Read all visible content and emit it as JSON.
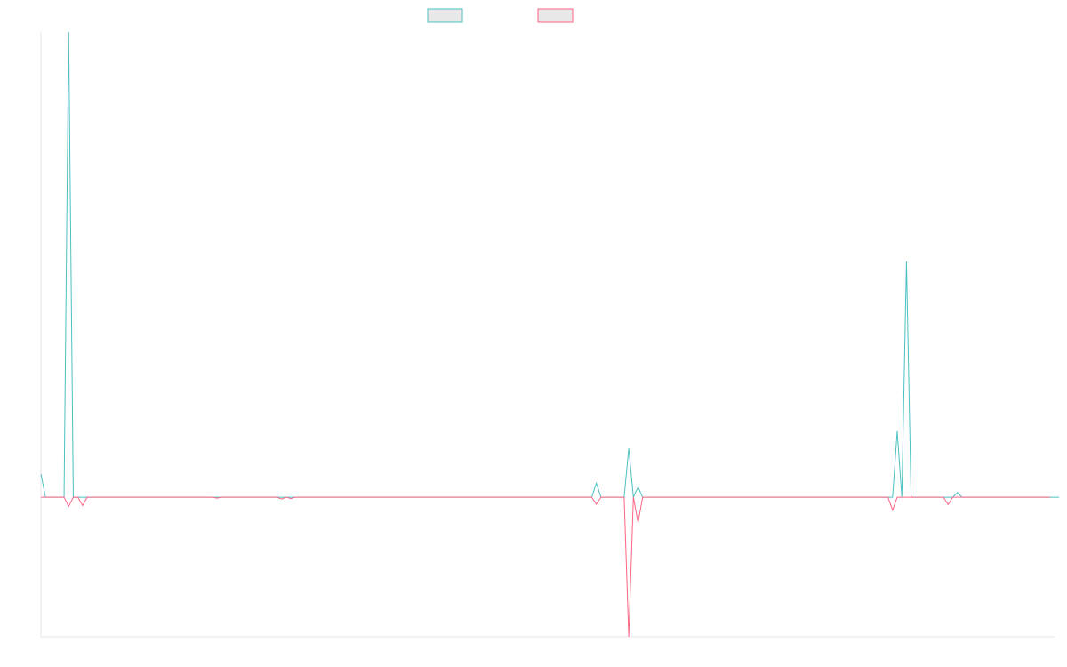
{
  "chart_data": {
    "type": "line",
    "title": "",
    "xlabel": "",
    "ylabel": "",
    "grid": false,
    "legend_position": "top-center",
    "point_count": 220,
    "ylim": [
      -30,
      100
    ],
    "series": [
      {
        "name": "",
        "color": "#4bc0c0",
        "legend_fill": "#e8e8e8",
        "values": [
          5,
          0,
          0,
          0,
          0,
          0,
          100,
          0,
          0,
          0,
          0,
          0,
          0,
          0,
          0,
          0,
          0,
          0,
          0,
          0,
          0,
          0,
          0,
          0,
          0,
          0,
          0,
          0,
          0,
          0,
          0,
          0,
          0,
          0,
          0,
          0,
          0,
          0,
          0,
          0,
          0,
          0,
          0,
          0,
          0,
          0,
          0,
          0,
          0,
          0,
          0,
          0,
          0,
          0,
          0,
          0,
          0,
          0,
          0,
          0,
          0,
          0,
          0,
          0,
          0,
          0,
          0,
          0,
          0,
          0,
          0,
          0,
          0,
          0,
          0,
          0,
          0,
          0,
          0,
          0,
          0,
          0,
          0,
          0,
          0,
          0,
          0,
          0,
          0,
          0,
          0,
          0,
          0,
          0,
          0,
          0,
          0,
          0,
          0,
          0,
          0,
          0,
          0,
          0,
          0,
          0,
          0,
          0,
          0,
          0,
          0,
          0,
          0,
          0,
          0,
          0,
          0,
          0,
          0,
          0,
          3,
          0,
          0,
          0,
          0,
          0,
          0,
          10.5,
          0,
          2.2,
          0,
          0,
          0,
          0,
          0,
          0,
          0,
          0,
          0,
          0,
          0,
          0,
          0,
          0,
          0,
          0,
          0,
          0,
          0,
          0,
          0,
          0,
          0,
          0,
          0,
          0,
          0,
          0,
          0,
          0,
          0,
          0,
          0,
          0,
          0,
          0,
          0,
          0,
          0,
          0,
          0,
          0,
          0,
          0,
          0,
          0,
          0,
          0,
          0,
          0,
          0,
          0,
          0,
          0,
          0,
          14.2,
          0,
          50.7,
          0,
          0,
          0,
          0,
          0,
          0,
          0,
          0,
          0,
          0,
          1,
          0,
          0,
          0,
          0,
          0,
          0,
          0,
          0,
          0,
          0,
          0,
          0,
          0,
          0,
          0,
          0,
          0,
          0,
          0,
          0,
          0,
          0
        ]
      },
      {
        "name": "",
        "color": "#ff6384",
        "legend_fill": "#e8e8e8",
        "values": [
          0,
          0,
          0,
          0,
          0,
          0,
          -2,
          0,
          0,
          -1.8,
          0,
          0,
          0,
          0,
          0,
          0,
          0,
          0,
          0,
          0,
          0,
          0,
          0,
          0,
          0,
          0,
          0,
          0,
          0,
          0,
          0,
          0,
          0,
          0,
          0,
          0,
          0,
          0,
          -0.2,
          0,
          0,
          0,
          0,
          0,
          0,
          0,
          0,
          0,
          0,
          0,
          0,
          0,
          -0.4,
          0,
          -0.3,
          0,
          0,
          0,
          0,
          0,
          0,
          0,
          0,
          0,
          0,
          0,
          0,
          0,
          0,
          0,
          0,
          0,
          0,
          0,
          0,
          0,
          0,
          0,
          0,
          0,
          0,
          0,
          0,
          0,
          0,
          0,
          0,
          0,
          0,
          0,
          0,
          0,
          0,
          0,
          0,
          0,
          0,
          0,
          0,
          0,
          0,
          0,
          0,
          0,
          0,
          0,
          0,
          0,
          0,
          0,
          0,
          0,
          0,
          0,
          0,
          0,
          0,
          0,
          0,
          0,
          -1.5,
          0,
          0,
          0,
          0,
          0,
          0,
          -30,
          0,
          -5.5,
          0,
          0,
          0,
          0,
          0,
          0,
          0,
          0,
          0,
          0,
          0,
          0,
          0,
          0,
          0,
          0,
          0,
          0,
          0,
          0,
          0,
          0,
          0,
          0,
          0,
          0,
          0,
          0,
          0,
          0,
          0,
          0,
          0,
          0,
          0,
          0,
          0,
          0,
          0,
          0,
          0,
          0,
          0,
          0,
          0,
          0,
          0,
          0,
          0,
          0,
          0,
          0,
          0,
          0,
          -2.8,
          0,
          0,
          0,
          0,
          0,
          0,
          0,
          0,
          0,
          0,
          0,
          -1.6,
          0,
          0,
          0,
          0,
          0,
          0,
          0,
          0,
          0,
          0,
          0,
          0,
          0,
          0,
          0,
          0,
          0,
          0,
          0,
          0,
          0,
          0
        ]
      }
    ]
  }
}
